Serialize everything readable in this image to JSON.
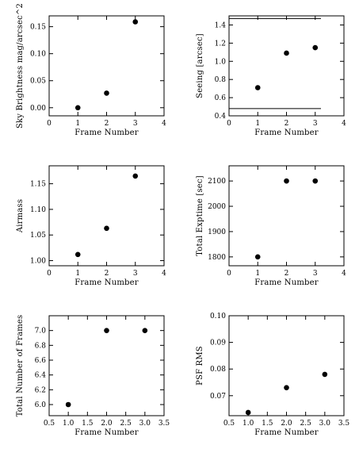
{
  "chart_data": [
    {
      "type": "scatter",
      "xlabel": "Frame Number",
      "ylabel": "Sky Brightness mag/arcsec^2",
      "xlim": [
        0,
        4
      ],
      "ylim": [
        -0.015,
        0.17
      ],
      "xticks": [
        0,
        1,
        2,
        3,
        4
      ],
      "xtick_labels": [
        "0",
        "1",
        "2",
        "3",
        "4"
      ],
      "yticks": [
        0.0,
        0.05,
        0.1,
        0.15
      ],
      "ytick_labels": [
        "0.00",
        "0.05",
        "0.10",
        "0.15"
      ],
      "x": [
        1,
        2,
        3
      ],
      "y": [
        0.0,
        0.027,
        0.159
      ],
      "hlines": [],
      "grid": false,
      "legend": "none"
    },
    {
      "type": "scatter",
      "xlabel": "Frame Number",
      "ylabel": "Seeing [arcsec]",
      "xlim": [
        0,
        4
      ],
      "ylim": [
        0.4,
        1.5
      ],
      "xticks": [
        0,
        1,
        2,
        3,
        4
      ],
      "xtick_labels": [
        "0",
        "1",
        "2",
        "3",
        "4"
      ],
      "yticks": [
        0.4,
        0.6,
        0.8,
        1.0,
        1.2,
        1.4
      ],
      "ytick_labels": [
        "0.4",
        "0.6",
        "0.8",
        "1.0",
        "1.2",
        "1.4"
      ],
      "x": [
        1,
        2,
        3
      ],
      "y": [
        0.71,
        1.09,
        1.15
      ],
      "hlines": [
        {
          "y": 1.47,
          "x_range": [
            0,
            3.2
          ]
        },
        {
          "y": 0.48,
          "x_range": [
            0,
            3.2
          ]
        }
      ],
      "grid": false,
      "legend": "none"
    },
    {
      "type": "scatter",
      "xlabel": "Frame Number",
      "ylabel": "Airmass",
      "xlim": [
        0,
        4
      ],
      "ylim": [
        0.99,
        1.185
      ],
      "xticks": [
        0,
        1,
        2,
        3,
        4
      ],
      "xtick_labels": [
        "0",
        "1",
        "2",
        "3",
        "4"
      ],
      "yticks": [
        1.0,
        1.05,
        1.1,
        1.15
      ],
      "ytick_labels": [
        "1.00",
        "1.05",
        "1.10",
        "1.15"
      ],
      "x": [
        1,
        2,
        3
      ],
      "y": [
        1.012,
        1.063,
        1.165
      ],
      "hlines": [],
      "grid": false,
      "legend": "none"
    },
    {
      "type": "scatter",
      "xlabel": "Frame Number",
      "ylabel": "Total Exptime [sec]",
      "xlim": [
        0,
        4
      ],
      "ylim": [
        1765,
        2160
      ],
      "xticks": [
        0,
        1,
        2,
        3,
        4
      ],
      "xtick_labels": [
        "0",
        "1",
        "2",
        "3",
        "4"
      ],
      "yticks": [
        1800,
        1900,
        2000,
        2100
      ],
      "ytick_labels": [
        "1800",
        "1900",
        "2000",
        "2100"
      ],
      "x": [
        1,
        2,
        3
      ],
      "y": [
        1800,
        2100,
        2100
      ],
      "hlines": [],
      "grid": false,
      "legend": "none"
    },
    {
      "type": "scatter",
      "xlabel": "Frame Number",
      "ylabel": "Total Number of Frames",
      "xlim": [
        0.5,
        3.5
      ],
      "ylim": [
        5.85,
        7.2
      ],
      "xticks": [
        0.5,
        1.0,
        1.5,
        2.0,
        2.5,
        3.0,
        3.5
      ],
      "xtick_labels": [
        "0.5",
        "1.0",
        "1.5",
        "2.0",
        "2.5",
        "3.0",
        "3.5"
      ],
      "yticks": [
        6.0,
        6.2,
        6.4,
        6.6,
        6.8,
        7.0
      ],
      "ytick_labels": [
        "6.0",
        "6.2",
        "6.4",
        "6.6",
        "6.8",
        "7.0"
      ],
      "x": [
        1,
        2,
        3
      ],
      "y": [
        6.0,
        7.0,
        7.0
      ],
      "hlines": [],
      "grid": false,
      "legend": "none"
    },
    {
      "type": "scatter",
      "xlabel": "Frame Number",
      "ylabel": "PSF RMS",
      "xlim": [
        0.5,
        3.5
      ],
      "ylim": [
        0.0625,
        0.1
      ],
      "xticks": [
        0.5,
        1.0,
        1.5,
        2.0,
        2.5,
        3.0,
        3.5
      ],
      "xtick_labels": [
        "0.5",
        "1.0",
        "1.5",
        "2.0",
        "2.5",
        "3.0",
        "3.5"
      ],
      "yticks": [
        0.07,
        0.08,
        0.09,
        0.1
      ],
      "ytick_labels": [
        "0.07",
        "0.08",
        "0.09",
        "0.10"
      ],
      "x": [
        1,
        2,
        3
      ],
      "y": [
        0.0637,
        0.073,
        0.078
      ],
      "hlines": [],
      "grid": false,
      "legend": "none"
    }
  ]
}
